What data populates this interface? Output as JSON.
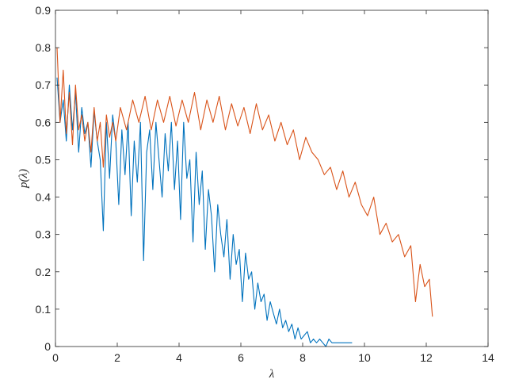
{
  "chart_data": {
    "type": "line",
    "xlabel": "λ",
    "ylabel": "p(λ)",
    "xlim": [
      0,
      14
    ],
    "ylim": [
      0,
      0.9
    ],
    "xticks": [
      "0",
      "2",
      "4",
      "6",
      "8",
      "10",
      "12",
      "14"
    ],
    "yticks": [
      "0",
      "0.1",
      "0.2",
      "0.3",
      "0.4",
      "0.5",
      "0.6",
      "0.7",
      "0.8",
      "0.9"
    ],
    "grid": false,
    "legend": null,
    "series": [
      {
        "color": "#0072BD",
        "x": [
          0.05,
          0.15,
          0.25,
          0.35,
          0.45,
          0.55,
          0.65,
          0.75,
          0.85,
          0.95,
          1.05,
          1.15,
          1.25,
          1.35,
          1.45,
          1.55,
          1.65,
          1.75,
          1.85,
          1.95,
          2.05,
          2.15,
          2.25,
          2.35,
          2.45,
          2.55,
          2.65,
          2.75,
          2.85,
          2.95,
          3.05,
          3.15,
          3.25,
          3.35,
          3.45,
          3.55,
          3.65,
          3.75,
          3.85,
          3.95,
          4.05,
          4.15,
          4.25,
          4.35,
          4.45,
          4.55,
          4.65,
          4.75,
          4.85,
          4.95,
          5.05,
          5.15,
          5.25,
          5.35,
          5.45,
          5.55,
          5.65,
          5.75,
          5.85,
          5.95,
          6.05,
          6.15,
          6.25,
          6.35,
          6.45,
          6.55,
          6.65,
          6.75,
          6.85,
          6.95,
          7.05,
          7.15,
          7.25,
          7.35,
          7.45,
          7.55,
          7.65,
          7.75,
          7.85,
          7.95,
          8.05,
          8.15,
          8.25,
          8.35,
          8.45,
          8.55,
          8.65,
          8.75,
          8.85,
          8.95,
          9.1,
          9.3,
          9.6
        ],
        "y": [
          0.72,
          0.6,
          0.66,
          0.55,
          0.7,
          0.58,
          0.68,
          0.52,
          0.64,
          0.57,
          0.6,
          0.48,
          0.63,
          0.55,
          0.5,
          0.31,
          0.6,
          0.45,
          0.62,
          0.55,
          0.38,
          0.58,
          0.46,
          0.6,
          0.35,
          0.55,
          0.44,
          0.6,
          0.23,
          0.52,
          0.58,
          0.42,
          0.6,
          0.5,
          0.4,
          0.57,
          0.47,
          0.6,
          0.42,
          0.55,
          0.34,
          0.6,
          0.45,
          0.5,
          0.28,
          0.52,
          0.38,
          0.47,
          0.26,
          0.42,
          0.35,
          0.2,
          0.38,
          0.3,
          0.24,
          0.34,
          0.18,
          0.3,
          0.22,
          0.26,
          0.12,
          0.25,
          0.18,
          0.2,
          0.1,
          0.17,
          0.12,
          0.14,
          0.07,
          0.12,
          0.09,
          0.06,
          0.1,
          0.05,
          0.07,
          0.04,
          0.06,
          0.02,
          0.05,
          0.02,
          0.03,
          0.04,
          0.01,
          0.02,
          0.01,
          0.02,
          0.01,
          0.0,
          0.02,
          0.01,
          0.01,
          0.01,
          0.01
        ]
      },
      {
        "color": "#D95319",
        "x": [
          0.05,
          0.15,
          0.25,
          0.35,
          0.45,
          0.55,
          0.65,
          0.75,
          0.85,
          0.95,
          1.05,
          1.15,
          1.25,
          1.35,
          1.45,
          1.55,
          1.65,
          1.75,
          1.85,
          1.95,
          2.1,
          2.3,
          2.5,
          2.7,
          2.9,
          3.1,
          3.3,
          3.5,
          3.7,
          3.9,
          4.1,
          4.3,
          4.5,
          4.7,
          4.9,
          5.1,
          5.3,
          5.5,
          5.7,
          5.9,
          6.1,
          6.3,
          6.5,
          6.7,
          6.9,
          7.1,
          7.3,
          7.5,
          7.7,
          7.9,
          8.1,
          8.3,
          8.5,
          8.7,
          8.9,
          9.1,
          9.3,
          9.5,
          9.7,
          9.9,
          10.1,
          10.3,
          10.5,
          10.7,
          10.9,
          11.1,
          11.3,
          11.5,
          11.65,
          11.8,
          11.95,
          12.1,
          12.2
        ],
        "y": [
          0.8,
          0.6,
          0.74,
          0.57,
          0.68,
          0.54,
          0.7,
          0.58,
          0.62,
          0.55,
          0.6,
          0.52,
          0.64,
          0.55,
          0.6,
          0.48,
          0.62,
          0.56,
          0.6,
          0.55,
          0.64,
          0.58,
          0.66,
          0.6,
          0.67,
          0.58,
          0.66,
          0.6,
          0.67,
          0.59,
          0.66,
          0.6,
          0.68,
          0.58,
          0.66,
          0.6,
          0.67,
          0.58,
          0.65,
          0.59,
          0.64,
          0.57,
          0.65,
          0.58,
          0.62,
          0.55,
          0.6,
          0.54,
          0.58,
          0.5,
          0.56,
          0.52,
          0.5,
          0.46,
          0.48,
          0.42,
          0.47,
          0.4,
          0.44,
          0.38,
          0.35,
          0.4,
          0.3,
          0.33,
          0.28,
          0.3,
          0.24,
          0.27,
          0.12,
          0.22,
          0.16,
          0.18,
          0.08
        ]
      }
    ]
  }
}
